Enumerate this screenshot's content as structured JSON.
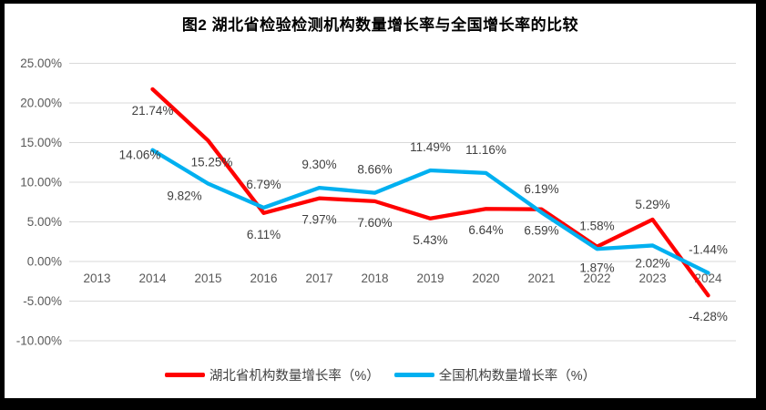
{
  "chart_data": {
    "type": "line",
    "title": "图2  湖北省检验检测机构数量增长率与全国增长率的比较",
    "categories": [
      "2013",
      "2014",
      "2015",
      "2016",
      "2017",
      "2018",
      "2019",
      "2020",
      "2021",
      "2022",
      "2023",
      "2024"
    ],
    "series": [
      {
        "name": "湖北省机构数量增长率（%）",
        "color": "#FF0000",
        "values": [
          null,
          21.74,
          15.25,
          6.11,
          7.97,
          7.6,
          5.43,
          6.64,
          6.59,
          1.87,
          5.29,
          -4.28
        ],
        "labels": [
          null,
          "21.74%",
          "15.25%",
          "6.11%",
          "7.97%",
          "7.60%",
          "5.43%",
          "6.64%",
          "6.59%",
          "1.87%",
          "5.29%",
          "-4.28%"
        ],
        "label_side": [
          null,
          "below",
          "below",
          "below",
          "below",
          "below",
          "below",
          "below",
          "below",
          "below",
          "above",
          "below"
        ],
        "label_default_dy": {
          "above": -12,
          "below": 28
        },
        "label_offsets": {
          "2": [
            4,
            28
          ]
        }
      },
      {
        "name": "全国机构数量增长率（%）",
        "color": "#00B0F0",
        "values": [
          null,
          14.06,
          9.82,
          6.79,
          9.3,
          8.66,
          11.49,
          11.16,
          6.19,
          1.58,
          2.02,
          -1.44
        ],
        "labels": [
          null,
          "14.06%",
          "9.82%",
          "6.79%",
          "9.30%",
          "8.66%",
          "11.49%",
          "11.16%",
          "6.19%",
          "1.58%",
          "2.02%",
          "-1.44%"
        ],
        "label_side": [
          null,
          "below",
          "below",
          "above",
          "above",
          "above",
          "above",
          "above",
          "above",
          "above",
          "below",
          "above"
        ],
        "label_default_dy": {
          "above": -21,
          "below": 24
        },
        "label_offsets": {
          "1": [
            -14,
            10
          ],
          "2": [
            -26,
            18
          ]
        }
      }
    ],
    "y_ticks": [
      {
        "value": 25,
        "label": "25.00%"
      },
      {
        "value": 20,
        "label": "20.00%"
      },
      {
        "value": 15,
        "label": "15.00%"
      },
      {
        "value": 10,
        "label": "10.00%"
      },
      {
        "value": 5,
        "label": "5.00%"
      },
      {
        "value": 0,
        "label": "0.00%"
      },
      {
        "value": -5,
        "label": "-5.00%"
      },
      {
        "value": -10,
        "label": "-10.00%"
      }
    ],
    "ylim": [
      -10,
      25
    ],
    "grid": true,
    "legend_position": "bottom",
    "colors": {
      "grid": "#D9D9D9",
      "tick_text": "#595959",
      "label_text": "#404040",
      "background": "#FFFFFF",
      "frame": "#000000"
    }
  }
}
